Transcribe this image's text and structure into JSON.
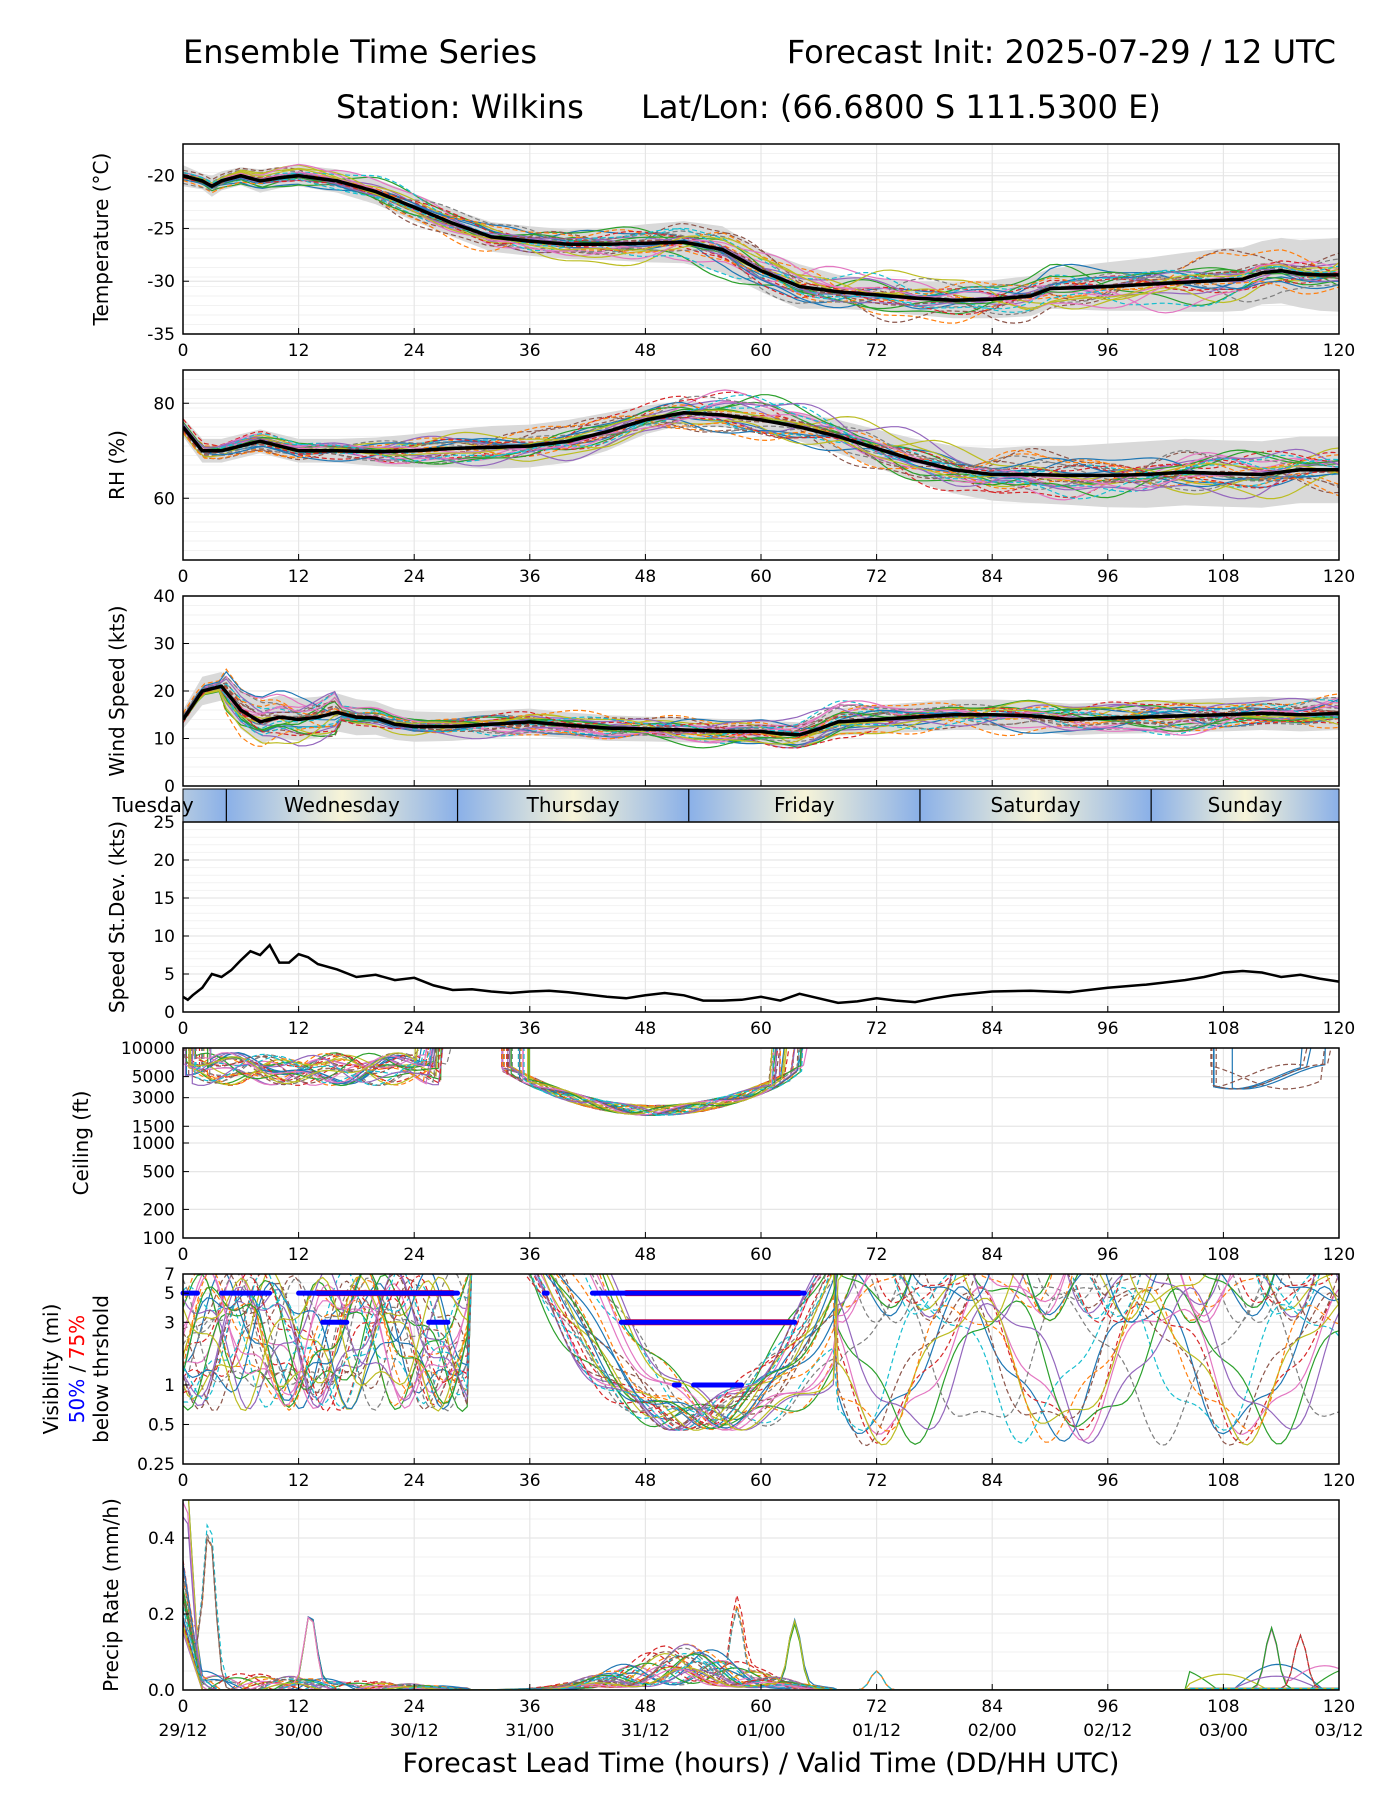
{
  "header": {
    "title_left": "Ensemble Time Series",
    "title_right": "Forecast Init: 2025-07-29 / 12 UTC",
    "station": "Station: Wilkins",
    "latlon": "Lat/Lon: (66.6800 S 111.5300 E)"
  },
  "colors": {
    "mean": "#000000",
    "spread": "#d9d9d9",
    "grid": "#e6e6e6",
    "vis_50": "#0000ff",
    "vis_75": "#ff0000",
    "member_palette": [
      "#1f77b4",
      "#ff7f0e",
      "#2ca02c",
      "#d62728",
      "#9467bd",
      "#8c564b",
      "#e377c2",
      "#7f7f7f",
      "#bcbd22",
      "#17becf"
    ]
  },
  "x_axis": {
    "ticks": [
      "0",
      "12",
      "24",
      "36",
      "48",
      "60",
      "72",
      "84",
      "96",
      "108",
      "120"
    ],
    "valid_times": [
      "29/12",
      "30/00",
      "30/12",
      "31/00",
      "31/12",
      "01/00",
      "01/12",
      "02/00",
      "02/12",
      "03/00",
      "03/12"
    ],
    "label": "Forecast Lead Time (hours) / Valid Time (DD/HH UTC)",
    "xlim": [
      0,
      120
    ]
  },
  "day_band": {
    "days": [
      "Tuesday",
      "Wednesday",
      "Thursday",
      "Friday",
      "Saturday",
      "Sunday"
    ],
    "day_start_hours": [
      4.5,
      28.5,
      52.5,
      76.5,
      100.5
    ]
  },
  "panels": {
    "temperature": {
      "ylabel": "Temperature (°C)",
      "ylim": [
        -35,
        -17
      ],
      "yticks": [
        "-20",
        "-25",
        "-30",
        "-35"
      ],
      "mean": {
        "x": [
          0,
          2,
          3,
          4,
          6,
          8,
          10,
          12,
          16,
          20,
          24,
          28,
          32,
          36,
          40,
          44,
          48,
          52,
          56,
          60,
          64,
          68,
          72,
          76,
          80,
          84,
          88,
          90,
          96,
          100,
          104,
          108,
          110,
          112,
          114,
          116,
          118,
          120
        ],
        "y": [
          -20,
          -20.5,
          -21,
          -20.5,
          -20,
          -20.5,
          -20.2,
          -20,
          -20.5,
          -21.5,
          -23,
          -24.5,
          -25.8,
          -26.2,
          -26.5,
          -26.5,
          -26.4,
          -26.3,
          -27,
          -29,
          -30.5,
          -31,
          -31.3,
          -31.6,
          -31.8,
          -31.7,
          -31.4,
          -30.7,
          -30.5,
          -30.3,
          -30.1,
          -29.9,
          -29.8,
          -29.2,
          -29,
          -29.3,
          -29.4,
          -29.4
        ]
      },
      "spread": {
        "upper": [
          -19,
          -19.8,
          -20,
          -19.6,
          -19.2,
          -19.4,
          -19.2,
          -19,
          -19.4,
          -20.3,
          -21.7,
          -23.2,
          -24.4,
          -24.8,
          -25.1,
          -25,
          -24.6,
          -24.3,
          -24.8,
          -27,
          -28.4,
          -29.4,
          -29.8,
          -30,
          -30.1,
          -29.9,
          -29.5,
          -28.8,
          -28.2,
          -27.8,
          -27.3,
          -26.9,
          -26.8,
          -26.2,
          -25.9,
          -26.1,
          -26,
          -25.9
        ],
        "lower": [
          -21,
          -21.3,
          -22,
          -21.4,
          -20.9,
          -21.6,
          -21.2,
          -21,
          -21.6,
          -22.7,
          -24.3,
          -25.8,
          -27.2,
          -27.6,
          -27.9,
          -28,
          -28.2,
          -28.3,
          -29.2,
          -31,
          -32.6,
          -32.6,
          -32.8,
          -33.2,
          -33.5,
          -33.5,
          -33.3,
          -32.6,
          -32.8,
          -32.8,
          -32.9,
          -32.9,
          -32.8,
          -32.2,
          -32.1,
          -32.5,
          -32.8,
          -32.9
        ]
      },
      "members": {
        "count": 30,
        "amplitude": [
          0.8,
          4.5
        ]
      }
    },
    "rh": {
      "ylabel": "RH (%)",
      "ylim": [
        47,
        87
      ],
      "yticks": [
        "60",
        "80"
      ],
      "mean": {
        "x": [
          0,
          2,
          4,
          6,
          8,
          10,
          12,
          16,
          20,
          24,
          28,
          32,
          36,
          40,
          44,
          48,
          52,
          56,
          60,
          64,
          68,
          72,
          76,
          80,
          84,
          88,
          92,
          96,
          100,
          104,
          108,
          112,
          116,
          120
        ],
        "y": [
          75,
          70,
          70,
          71,
          72,
          71,
          70,
          70,
          69.8,
          70,
          70.5,
          70.7,
          71,
          72,
          74,
          76.5,
          78,
          77.5,
          76.5,
          75,
          73,
          70.5,
          68,
          66,
          65,
          65,
          64.8,
          64.8,
          65,
          65.5,
          65.2,
          65,
          66,
          66
        ]
      },
      "spread": {
        "upper": [
          77,
          72.5,
          72.5,
          73.5,
          74.5,
          73.5,
          72.5,
          72.5,
          72.8,
          73.5,
          74.5,
          75.2,
          75.5,
          76.5,
          78,
          79.5,
          80.5,
          80,
          79,
          78,
          76.5,
          74.5,
          72.5,
          71,
          70.5,
          71,
          71,
          71.5,
          72,
          72.5,
          72.2,
          72,
          73,
          73
        ],
        "lower": [
          73,
          67.5,
          67.5,
          68.5,
          69.5,
          68.5,
          67.5,
          67.5,
          66.8,
          66.5,
          66.5,
          66.2,
          66.5,
          67.5,
          70,
          73.5,
          75.5,
          75,
          74,
          72,
          69.5,
          66.5,
          63.5,
          61,
          59.5,
          59,
          58.6,
          58.1,
          58,
          58.5,
          58.2,
          58,
          59,
          59
        ]
      },
      "members": {
        "count": 30,
        "amplitude": [
          2,
          9
        ]
      }
    },
    "wind_speed": {
      "ylabel": "Wind Speed (kts)",
      "ylim": [
        0,
        40
      ],
      "yticks": [
        "0",
        "10",
        "20",
        "30",
        "40"
      ],
      "mean": {
        "x": [
          0,
          2,
          4,
          6,
          8,
          10,
          12,
          14,
          16,
          18,
          20,
          22,
          24,
          28,
          32,
          36,
          40,
          44,
          48,
          52,
          56,
          60,
          62,
          64,
          66,
          68,
          72,
          76,
          80,
          84,
          88,
          92,
          96,
          100,
          104,
          108,
          112,
          116,
          120
        ],
        "y": [
          14,
          20,
          21,
          16,
          13.5,
          14.5,
          14,
          14.5,
          15.5,
          14.5,
          14.3,
          13,
          12.5,
          12.5,
          13,
          13.5,
          12.8,
          12.2,
          12,
          11.8,
          11.5,
          11.5,
          11,
          10.8,
          12,
          13.5,
          14,
          14.5,
          15,
          15,
          14.8,
          14,
          14.3,
          14.5,
          14.8,
          15,
          15.3,
          15,
          15.3
        ]
      },
      "spread": {
        "upper": [
          16,
          23,
          24,
          20,
          18,
          19,
          18.5,
          18.8,
          19.5,
          18.3,
          17.8,
          16.3,
          15.7,
          15.5,
          15.9,
          16.3,
          15.5,
          14.9,
          14.6,
          14.4,
          14.1,
          14.1,
          13.6,
          13.4,
          14.7,
          16.4,
          17,
          17.6,
          18.2,
          18.2,
          18,
          17.3,
          17.6,
          17.9,
          18.2,
          18.5,
          18.8,
          18.5,
          18.8
        ],
        "lower": [
          12,
          17,
          18,
          12,
          9,
          10,
          9.5,
          10.2,
          11.5,
          10.7,
          10.8,
          9.7,
          9.3,
          9.5,
          10.1,
          10.7,
          10.1,
          9.5,
          9.4,
          9.2,
          8.9,
          8.9,
          8.4,
          8.2,
          9.3,
          10.6,
          11,
          11.4,
          11.8,
          11.8,
          11.6,
          10.7,
          11,
          11.1,
          11.4,
          11.5,
          11.8,
          11.5,
          11.8
        ]
      },
      "members": {
        "count": 30,
        "amplitude": [
          1.5,
          7
        ]
      }
    },
    "speed_stdev": {
      "ylabel": "Speed St.Dev. (kts)",
      "ylim": [
        0,
        25
      ],
      "yticks": [
        "0",
        "5",
        "10",
        "15",
        "20",
        "25"
      ],
      "series": {
        "x": [
          0,
          0.5,
          1,
          2,
          3,
          4,
          5,
          6,
          7,
          8,
          9,
          10,
          11,
          12,
          13,
          14,
          16,
          18,
          20,
          22,
          24,
          26,
          28,
          30,
          32,
          34,
          36,
          38,
          40,
          42,
          44,
          46,
          48,
          50,
          52,
          54,
          56,
          58,
          60,
          62,
          64,
          66,
          68,
          70,
          72,
          74,
          76,
          78,
          80,
          84,
          88,
          92,
          96,
          100,
          104,
          106,
          108,
          110,
          112,
          114,
          116,
          118,
          120
        ],
        "y": [
          2,
          1.6,
          2.2,
          3.2,
          5,
          4.6,
          5.5,
          6.8,
          8,
          7.5,
          8.8,
          6.5,
          6.5,
          7.6,
          7.2,
          6.3,
          5.6,
          4.6,
          4.9,
          4.2,
          4.5,
          3.5,
          2.9,
          3,
          2.7,
          2.5,
          2.7,
          2.8,
          2.6,
          2.3,
          2,
          1.8,
          2.2,
          2.5,
          2.2,
          1.5,
          1.5,
          1.6,
          2,
          1.5,
          2.4,
          1.8,
          1.2,
          1.4,
          1.8,
          1.5,
          1.3,
          1.8,
          2.2,
          2.7,
          2.8,
          2.6,
          3.2,
          3.6,
          4.2,
          4.6,
          5.2,
          5.4,
          5.2,
          4.6,
          4.9,
          4.4,
          4
        ]
      }
    },
    "ceiling": {
      "ylabel": "Ceiling (ft)",
      "ylim": [
        100,
        10000
      ],
      "scale": "log",
      "yticks": [
        "100",
        "200",
        "500",
        "1000",
        "1500",
        "3000",
        "5000",
        "10000"
      ],
      "members": {
        "count": 30,
        "segments": [
          [
            0,
            28
          ],
          [
            33,
            65
          ],
          [
            106,
            120
          ]
        ]
      }
    },
    "visibility": {
      "ylabel_line1": "Visibility (mi)",
      "ylabel_line2_a": "50%",
      "ylabel_line2_sep": " / ",
      "ylabel_line2_b": "75%",
      "ylabel_line3": "below thrshold",
      "ylim": [
        0.25,
        7
      ],
      "scale": "log",
      "yticks": [
        "0.25",
        "0.5",
        "1",
        "3",
        "5",
        "7"
      ],
      "threshold_50": [
        {
          "y": 5,
          "x0": 0,
          "x1": 1.5
        },
        {
          "y": 5,
          "x0": 4,
          "x1": 9
        },
        {
          "y": 5,
          "x0": 12,
          "x1": 28.5
        },
        {
          "y": 5,
          "x0": 37.5,
          "x1": 37.8
        },
        {
          "y": 5,
          "x0": 42.5,
          "x1": 64.5
        },
        {
          "y": 3,
          "x0": 14.5,
          "x1": 17
        },
        {
          "y": 3,
          "x0": 25.5,
          "x1": 27.5
        },
        {
          "y": 3,
          "x0": 45.5,
          "x1": 63.5
        },
        {
          "y": 1,
          "x0": 51,
          "x1": 51.5
        },
        {
          "y": 1,
          "x0": 53,
          "x1": 58
        }
      ],
      "threshold_75": [
        {
          "y": 5,
          "x0": 14,
          "x1": 28
        },
        {
          "y": 5,
          "x0": 46,
          "x1": 64
        },
        {
          "y": 3,
          "x0": 46,
          "x1": 63
        }
      ],
      "members": {
        "count": 30
      }
    },
    "precip": {
      "ylabel": "Precip Rate (mm/h)",
      "ylim": [
        0,
        0.5
      ],
      "yticks": [
        "0.0",
        "0.2",
        "0.4"
      ],
      "members": {
        "count": 30,
        "peaks": [
          [
            0.3,
            0.34
          ],
          [
            2.7,
            0.42
          ],
          [
            13.2,
            0.2
          ],
          [
            57.5,
            0.2
          ],
          [
            63.5,
            0.17
          ],
          [
            72,
            0.05
          ],
          [
            113,
            0.16
          ],
          [
            116,
            0.14
          ]
        ]
      }
    }
  }
}
